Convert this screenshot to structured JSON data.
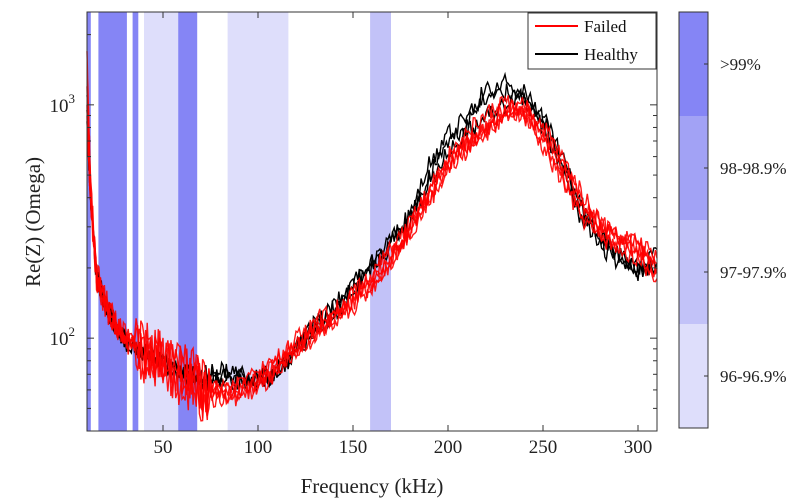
{
  "chart_data": {
    "type": "line",
    "xlabel": "Frequency (kHz)",
    "ylabel": "Re(Z) (Omega)",
    "xlim": [
      10,
      310
    ],
    "ylim": [
      40,
      2500
    ],
    "yscale": "log",
    "x_ticks": [
      50,
      100,
      150,
      200,
      250,
      300
    ],
    "y_ticks": [
      {
        "value": 100,
        "base": "10",
        "exp": "2"
      },
      {
        "value": 1000,
        "base": "10",
        "exp": "3"
      }
    ],
    "grid": false,
    "legend": {
      "position": "top-right",
      "entries": [
        {
          "label": "Failed",
          "color": "#ff0000"
        },
        {
          "label": "Healthy",
          "color": "#000000"
        }
      ]
    },
    "shaded_bands": [
      {
        "x": [
          10,
          12
        ],
        "level": "99"
      },
      {
        "x": [
          16,
          31
        ],
        "level": "99"
      },
      {
        "x": [
          34,
          37
        ],
        "level": "99"
      },
      {
        "x": [
          40,
          58
        ],
        "level": "96"
      },
      {
        "x": [
          58,
          68
        ],
        "level": "99"
      },
      {
        "x": [
          84,
          116
        ],
        "level": "96"
      },
      {
        "x": [
          159,
          170
        ],
        "level": "97"
      }
    ],
    "colorbar": {
      "levels": [
        {
          "key": "99",
          "label": ">99%",
          "color": "#8585f5"
        },
        {
          "key": "98",
          "label": "98-98.9%",
          "color": "#a2a2f5"
        },
        {
          "key": "97",
          "label": "97-97.9%",
          "color": "#c2c2f8"
        },
        {
          "key": "96",
          "label": "96-96.9%",
          "color": "#dedefb"
        }
      ]
    },
    "series": [
      {
        "group": "Failed",
        "color": "#ff0000",
        "points": [
          [
            10,
            1700
          ],
          [
            12,
            450
          ],
          [
            15,
            200
          ],
          [
            20,
            150
          ],
          [
            25,
            120
          ],
          [
            30,
            105
          ],
          [
            40,
            88
          ],
          [
            50,
            80
          ],
          [
            60,
            70
          ],
          [
            70,
            62
          ],
          [
            80,
            58
          ],
          [
            90,
            62
          ],
          [
            100,
            65
          ],
          [
            110,
            75
          ],
          [
            120,
            90
          ],
          [
            130,
            110
          ],
          [
            140,
            125
          ],
          [
            150,
            150
          ],
          [
            160,
            185
          ],
          [
            170,
            230
          ],
          [
            180,
            300
          ],
          [
            190,
            400
          ],
          [
            200,
            560
          ],
          [
            210,
            680
          ],
          [
            220,
            780
          ],
          [
            230,
            900
          ],
          [
            240,
            950
          ],
          [
            250,
            780
          ],
          [
            260,
            540
          ],
          [
            270,
            380
          ],
          [
            280,
            300
          ],
          [
            290,
            260
          ],
          [
            300,
            230
          ],
          [
            310,
            190
          ]
        ]
      },
      {
        "group": "Failed",
        "color": "#ff0000",
        "points": [
          [
            10,
            1200
          ],
          [
            12,
            420
          ],
          [
            15,
            190
          ],
          [
            20,
            140
          ],
          [
            25,
            115
          ],
          [
            30,
            100
          ],
          [
            40,
            90
          ],
          [
            50,
            82
          ],
          [
            60,
            72
          ],
          [
            70,
            60
          ],
          [
            80,
            56
          ],
          [
            90,
            60
          ],
          [
            100,
            68
          ],
          [
            110,
            80
          ],
          [
            120,
            95
          ],
          [
            130,
            115
          ],
          [
            140,
            120
          ],
          [
            150,
            140
          ],
          [
            160,
            170
          ],
          [
            170,
            215
          ],
          [
            180,
            280
          ],
          [
            190,
            380
          ],
          [
            200,
            520
          ],
          [
            210,
            640
          ],
          [
            220,
            820
          ],
          [
            230,
            980
          ],
          [
            240,
            900
          ],
          [
            250,
            720
          ],
          [
            260,
            500
          ],
          [
            270,
            350
          ],
          [
            280,
            290
          ],
          [
            290,
            250
          ],
          [
            300,
            240
          ],
          [
            310,
            210
          ]
        ]
      },
      {
        "group": "Failed",
        "color": "#ff0000",
        "points": [
          [
            10,
            900
          ],
          [
            12,
            380
          ],
          [
            15,
            180
          ],
          [
            20,
            135
          ],
          [
            25,
            110
          ],
          [
            30,
            98
          ],
          [
            40,
            86
          ],
          [
            50,
            78
          ],
          [
            60,
            68
          ],
          [
            70,
            64
          ],
          [
            80,
            60
          ],
          [
            90,
            58
          ],
          [
            100,
            62
          ],
          [
            110,
            72
          ],
          [
            120,
            88
          ],
          [
            130,
            100
          ],
          [
            140,
            115
          ],
          [
            150,
            135
          ],
          [
            160,
            165
          ],
          [
            170,
            210
          ],
          [
            180,
            290
          ],
          [
            190,
            420
          ],
          [
            200,
            600
          ],
          [
            210,
            760
          ],
          [
            220,
            900
          ],
          [
            230,
            1050
          ],
          [
            240,
            870
          ],
          [
            250,
            650
          ],
          [
            260,
            470
          ],
          [
            270,
            330
          ],
          [
            280,
            270
          ],
          [
            290,
            240
          ],
          [
            300,
            220
          ],
          [
            310,
            180
          ]
        ]
      },
      {
        "group": "Failed",
        "color": "#ff0000",
        "points": [
          [
            10,
            1000
          ],
          [
            12,
            400
          ],
          [
            15,
            185
          ],
          [
            20,
            145
          ],
          [
            25,
            118
          ],
          [
            30,
            102
          ],
          [
            40,
            92
          ],
          [
            50,
            84
          ],
          [
            60,
            74
          ],
          [
            70,
            66
          ],
          [
            80,
            62
          ],
          [
            90,
            64
          ],
          [
            100,
            70
          ],
          [
            110,
            82
          ],
          [
            120,
            98
          ],
          [
            130,
            120
          ],
          [
            140,
            130
          ],
          [
            150,
            155
          ],
          [
            160,
            190
          ],
          [
            170,
            240
          ],
          [
            180,
            310
          ],
          [
            190,
            430
          ],
          [
            200,
            580
          ],
          [
            210,
            700
          ],
          [
            220,
            760
          ],
          [
            230,
            860
          ],
          [
            240,
            1000
          ],
          [
            250,
            820
          ],
          [
            260,
            600
          ],
          [
            270,
            420
          ],
          [
            280,
            320
          ],
          [
            290,
            270
          ],
          [
            300,
            250
          ],
          [
            310,
            200
          ]
        ]
      },
      {
        "group": "Failed",
        "color": "#ff0000",
        "points": [
          [
            10,
            800
          ],
          [
            12,
            360
          ],
          [
            15,
            175
          ],
          [
            20,
            130
          ],
          [
            25,
            108
          ],
          [
            30,
            95
          ],
          [
            40,
            84
          ],
          [
            50,
            76
          ],
          [
            60,
            66
          ],
          [
            70,
            58
          ],
          [
            80,
            54
          ],
          [
            90,
            56
          ],
          [
            100,
            60
          ],
          [
            110,
            70
          ],
          [
            120,
            85
          ],
          [
            130,
            105
          ],
          [
            140,
            118
          ],
          [
            150,
            145
          ],
          [
            160,
            175
          ],
          [
            170,
            220
          ],
          [
            180,
            300
          ],
          [
            190,
            410
          ],
          [
            200,
            540
          ],
          [
            210,
            660
          ],
          [
            220,
            800
          ],
          [
            230,
            940
          ],
          [
            240,
            980
          ],
          [
            250,
            760
          ],
          [
            260,
            560
          ],
          [
            270,
            400
          ],
          [
            280,
            310
          ],
          [
            290,
            280
          ],
          [
            300,
            260
          ],
          [
            310,
            220
          ]
        ]
      },
      {
        "group": "Healthy",
        "color": "#000000",
        "points": [
          [
            10,
            1100
          ],
          [
            12,
            420
          ],
          [
            15,
            190
          ],
          [
            20,
            140
          ],
          [
            25,
            115
          ],
          [
            30,
            100
          ],
          [
            40,
            88
          ],
          [
            50,
            80
          ],
          [
            60,
            72
          ],
          [
            70,
            70
          ],
          [
            80,
            72
          ],
          [
            90,
            70
          ],
          [
            100,
            68
          ],
          [
            110,
            72
          ],
          [
            120,
            92
          ],
          [
            130,
            115
          ],
          [
            140,
            140
          ],
          [
            150,
            170
          ],
          [
            160,
            210
          ],
          [
            170,
            260
          ],
          [
            180,
            330
          ],
          [
            190,
            500
          ],
          [
            200,
            750
          ],
          [
            210,
            900
          ],
          [
            220,
            1050
          ],
          [
            230,
            1250
          ],
          [
            240,
            1100
          ],
          [
            250,
            900
          ],
          [
            260,
            600
          ],
          [
            270,
            380
          ],
          [
            280,
            280
          ],
          [
            290,
            230
          ],
          [
            300,
            200
          ],
          [
            310,
            240
          ]
        ]
      },
      {
        "group": "Healthy",
        "color": "#000000",
        "points": [
          [
            10,
            950
          ],
          [
            12,
            400
          ],
          [
            15,
            185
          ],
          [
            20,
            138
          ],
          [
            25,
            112
          ],
          [
            30,
            98
          ],
          [
            40,
            86
          ],
          [
            50,
            79
          ],
          [
            60,
            70
          ],
          [
            70,
            66
          ],
          [
            80,
            64
          ],
          [
            90,
            66
          ],
          [
            100,
            64
          ],
          [
            110,
            68
          ],
          [
            120,
            88
          ],
          [
            130,
            108
          ],
          [
            140,
            125
          ],
          [
            150,
            150
          ],
          [
            160,
            195
          ],
          [
            170,
            250
          ],
          [
            180,
            350
          ],
          [
            190,
            560
          ],
          [
            200,
            700
          ],
          [
            210,
            820
          ],
          [
            220,
            1200
          ],
          [
            230,
            1150
          ],
          [
            240,
            1050
          ],
          [
            250,
            800
          ],
          [
            260,
            520
          ],
          [
            270,
            330
          ],
          [
            280,
            250
          ],
          [
            290,
            210
          ],
          [
            300,
            190
          ],
          [
            310,
            200
          ]
        ]
      },
      {
        "group": "Healthy",
        "color": "#000000",
        "points": [
          [
            10,
            850
          ],
          [
            12,
            380
          ],
          [
            15,
            180
          ],
          [
            20,
            134
          ],
          [
            25,
            110
          ],
          [
            30,
            96
          ],
          [
            40,
            84
          ],
          [
            50,
            78
          ],
          [
            60,
            69
          ],
          [
            70,
            68
          ],
          [
            80,
            68
          ],
          [
            90,
            68
          ],
          [
            100,
            66
          ],
          [
            110,
            70
          ],
          [
            120,
            90
          ],
          [
            130,
            112
          ],
          [
            140,
            135
          ],
          [
            150,
            165
          ],
          [
            160,
            205
          ],
          [
            170,
            265
          ],
          [
            180,
            320
          ],
          [
            190,
            460
          ],
          [
            200,
            620
          ],
          [
            210,
            760
          ],
          [
            220,
            880
          ],
          [
            230,
            1000
          ],
          [
            240,
            1180
          ],
          [
            250,
            860
          ],
          [
            260,
            560
          ],
          [
            270,
            360
          ],
          [
            280,
            270
          ],
          [
            290,
            220
          ],
          [
            300,
            195
          ],
          [
            310,
            210
          ]
        ]
      }
    ]
  }
}
